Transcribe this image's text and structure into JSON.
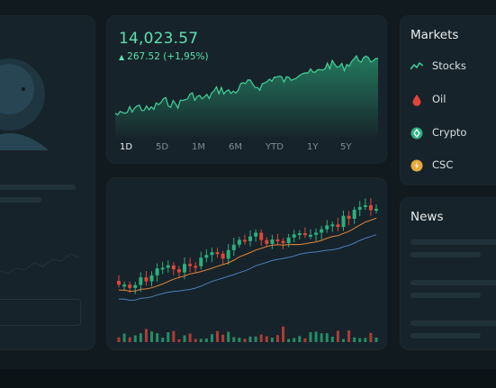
{
  "price": {
    "value": "14,023.57",
    "change": "267.52 (+1,95%)",
    "accent": "#5de0b0",
    "ranges": [
      "1D",
      "5D",
      "1M",
      "6M",
      "YTD",
      "1Y",
      "5Y"
    ],
    "active_range": "1D"
  },
  "markets": {
    "title": "Markets",
    "items": [
      {
        "label": "Stocks",
        "icon": "trend-line-icon"
      },
      {
        "label": "Oil",
        "icon": "oil-drop-icon"
      },
      {
        "label": "Crypto",
        "icon": "crypto-coin-icon"
      },
      {
        "label": "CSC",
        "icon": "csc-coin-icon"
      }
    ]
  },
  "news": {
    "title": "News"
  },
  "colors": {
    "up": "#2bb07e",
    "down": "#e0453b",
    "ma_short": "#e0873b",
    "ma_long": "#4a7fb8",
    "panel": "#17232a",
    "background": "#111a1e"
  }
}
